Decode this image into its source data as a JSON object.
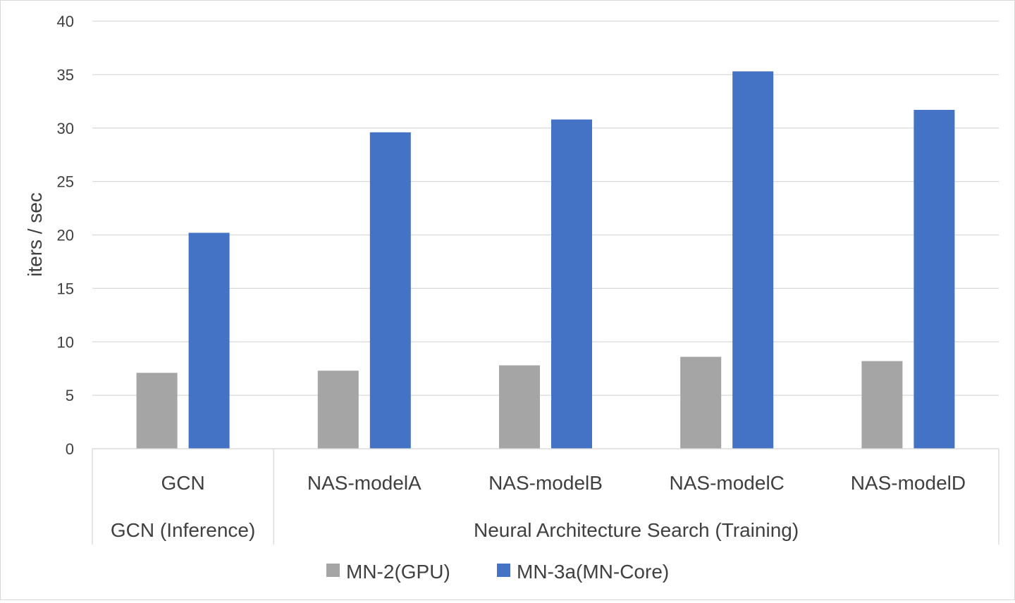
{
  "chart_data": {
    "type": "bar",
    "ylabel": "iters / sec",
    "ylim": [
      0,
      40
    ],
    "yticks": [
      "0",
      "5",
      "10",
      "15",
      "20",
      "25",
      "30",
      "35",
      "40"
    ],
    "grid": true,
    "legend_position": "bottom",
    "categories": [
      "GCN",
      "NAS-modelA",
      "NAS-modelB",
      "NAS-modelC",
      "NAS-modelD"
    ],
    "groups": [
      {
        "label": "GCN (Inference)",
        "categories": [
          "GCN"
        ]
      },
      {
        "label": "Neural Architecture Search (Training)",
        "categories": [
          "NAS-modelA",
          "NAS-modelB",
          "NAS-modelC",
          "NAS-modelD"
        ]
      }
    ],
    "series": [
      {
        "name": "MN-2(GPU)",
        "color": "#a5a5a5",
        "values": [
          7.1,
          7.3,
          7.8,
          8.6,
          8.2
        ]
      },
      {
        "name": "MN-3a(MN-Core)",
        "color": "#4472c4",
        "values": [
          20.2,
          29.6,
          30.8,
          35.3,
          31.7
        ]
      }
    ]
  }
}
